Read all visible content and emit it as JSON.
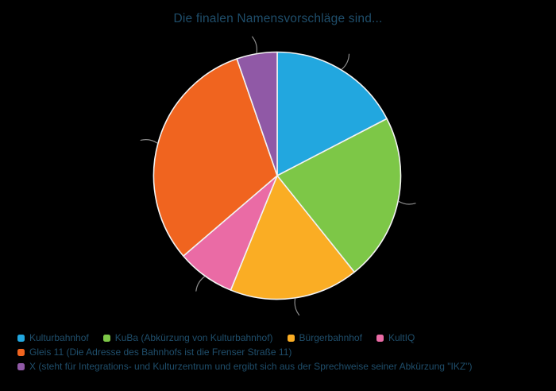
{
  "window": {
    "background_color": "#000000"
  },
  "title": {
    "text": "Die finalen Namensvorschläge sind...",
    "color": "#1f4e6b"
  },
  "chart_data": {
    "type": "pie",
    "title": "Die finalen Namensvorschläge sind...",
    "direction": "clockwise",
    "start_angle": "12-o-clock",
    "labels": [
      "Kulturbahnhof",
      "KuBa (Abkürzung von Kulturbahnhof)",
      "Bürgerbahnhof",
      "KultIQ",
      "Gleis 11 (Die Adresse des Bahnhofs ist die Frenser Straße 11)",
      "X (steht für Integrations- und Kulturzentrum und ergibt sich aus der Sprechweise seiner Abkürzung \"IKZ\")"
    ],
    "values_percent": [
      17.4,
      21.9,
      16.9,
      7.6,
      31.0,
      5.3
    ],
    "colors": [
      "#22a7df",
      "#7dc747",
      "#faad24",
      "#ea6ba5",
      "#f0641f",
      "#9059a6"
    ],
    "slice_edge_color": "#f2f2f2",
    "leader_line_color": "#8c8c8c",
    "legend_position": "bottom-left",
    "legend_rows": [
      [
        0,
        1,
        2,
        3
      ],
      [
        4
      ],
      [
        5
      ]
    ],
    "legend_text_color": "#1f4e6b",
    "grid": false
  }
}
